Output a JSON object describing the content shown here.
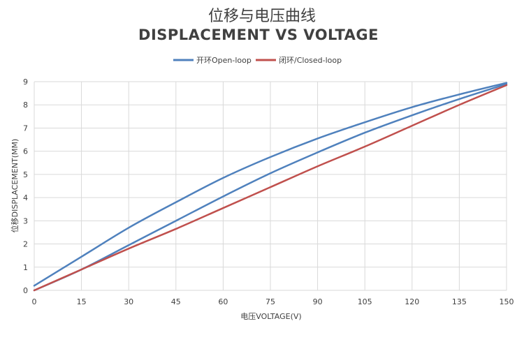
{
  "chart_data": {
    "type": "line",
    "title": "位移与电压曲线",
    "subtitle": "DISPLACEMENT VS VOLTAGE",
    "xlabel": "电压VOLTAGE(V)",
    "ylabel": "位移DISPLACEMENT(MM)",
    "xlim": [
      0,
      150
    ],
    "ylim": [
      0,
      9
    ],
    "xticks": [
      0,
      15,
      30,
      45,
      60,
      75,
      90,
      105,
      120,
      135,
      150
    ],
    "yticks": [
      0,
      1,
      2,
      3,
      4,
      5,
      6,
      7,
      8,
      9
    ],
    "grid": true,
    "legend_position": "top",
    "series": [
      {
        "name": "开环Open-loop",
        "color": "#4f81bd",
        "x": [
          0,
          15,
          30,
          45,
          60,
          75,
          90,
          105,
          120,
          135,
          150
        ],
        "y": [
          0.2,
          1.45,
          2.7,
          3.8,
          4.85,
          5.75,
          6.55,
          7.25,
          7.9,
          8.45,
          8.95
        ]
      },
      {
        "name": "开环Open-loop",
        "color": "#4f81bd",
        "x": [
          0,
          15,
          30,
          45,
          60,
          75,
          90,
          105,
          120,
          135,
          150
        ],
        "y": [
          0,
          0.9,
          1.95,
          3.0,
          4.05,
          5.05,
          5.95,
          6.8,
          7.55,
          8.25,
          8.9
        ]
      },
      {
        "name": "闭环/Closed-loop",
        "color": "#c0504d",
        "x": [
          0,
          15,
          30,
          45,
          60,
          75,
          90,
          105,
          120,
          135,
          150
        ],
        "y": [
          0,
          0.9,
          1.8,
          2.65,
          3.55,
          4.45,
          5.35,
          6.2,
          7.1,
          8.0,
          8.85
        ]
      }
    ],
    "legend": [
      {
        "label": "开环Open-loop",
        "color": "#4f81bd"
      },
      {
        "label": "闭环/Closed-loop",
        "color": "#c0504d"
      }
    ]
  }
}
